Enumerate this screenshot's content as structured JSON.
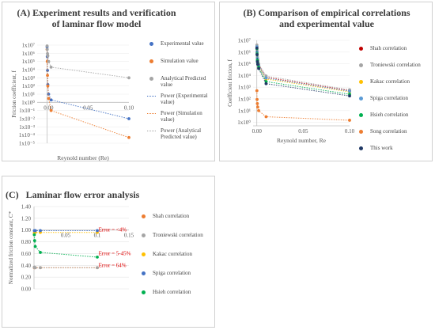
{
  "panels": {
    "a": {
      "label": "(A)",
      "title_line1": "Experiment results and verification",
      "title_line2": "of laminar flow model",
      "legend": [
        {
          "label": "Experimental value",
          "kind": "marker",
          "color": "#4472c4"
        },
        {
          "label": "Simulation value",
          "kind": "marker",
          "color": "#ed7d31"
        },
        {
          "label": "Analytical Predicted value",
          "kind": "marker",
          "color": "#a5a5a5"
        },
        {
          "label": "Power (Experimental value)",
          "kind": "line",
          "color": "#4472c4"
        },
        {
          "label": "Power (Simulation value)",
          "kind": "line",
          "color": "#ed7d31"
        },
        {
          "label": "Power (Analytical Predicted value)",
          "kind": "line",
          "color": "#a5a5a5"
        }
      ]
    },
    "b": {
      "label": "(B)",
      "title_line1": "Comparison of empirical correlations",
      "title_line2": "and experimental value",
      "legend": [
        {
          "label": "Shah correlation",
          "color": "#c00000"
        },
        {
          "label": "Troniewski correlation",
          "color": "#a5a5a5"
        },
        {
          "label": "Kakac correlation",
          "color": "#ffc000"
        },
        {
          "label": "Spiga correlation",
          "color": "#5b9bd5"
        },
        {
          "label": "Hsieh correlation",
          "color": "#00b050"
        },
        {
          "label": "Song correlation",
          "color": "#ed7d31"
        },
        {
          "label": "This work",
          "color": "#1f3864"
        }
      ]
    },
    "c": {
      "label": "(C)",
      "title": "Laminar flow error analysis",
      "legend": [
        {
          "label": "Shah correlation",
          "color": "#ed7d31"
        },
        {
          "label": "Troniewski correlation",
          "color": "#a5a5a5"
        },
        {
          "label": "Kakac correlation",
          "color": "#ffc000"
        },
        {
          "label": "Spiga correlation",
          "color": "#4472c4"
        },
        {
          "label": "Hsieh correlation",
          "color": "#00b050"
        }
      ]
    }
  },
  "chart_data": [
    {
      "type": "scatter",
      "id": "a",
      "xlabel": "Reynold number (Re)",
      "ylabel": "Friction coefficient, f",
      "xlim": [
        -0.012,
        0.1
      ],
      "ylim": [
        -5,
        7
      ],
      "yscale": "log",
      "x_ticks": [
        0.05,
        0.1
      ],
      "x_tick_labels": [
        "0.05",
        "0.10"
      ],
      "x_zero_label": "0.00",
      "y_tick_labels": [
        "1x10⁷",
        "1x10⁶",
        "1x10⁵",
        "1x10⁴",
        "1x10³",
        "1x10²",
        "1x10¹",
        "1x10⁰",
        "1x10⁻¹",
        "1x10⁻²",
        "1x10⁻³",
        "1x10⁻⁴",
        "1x10⁻⁵"
      ],
      "series": [
        {
          "name": "Experimental value",
          "color": "#4472c4",
          "x": [
            0.0001,
            0.0003,
            0.0006,
            0.001,
            0.002,
            0.005,
            0.1
          ],
          "y": [
            6000000,
            400000,
            8000,
            150,
            10,
            2,
            0.01
          ]
        },
        {
          "name": "Simulation value",
          "color": "#ed7d31",
          "x": [
            0.0001,
            0.0003,
            0.0006,
            0.001,
            0.002,
            0.005,
            0.1
          ],
          "y": [
            3000000,
            100000,
            2000,
            100,
            3,
            0.1,
            5e-05
          ]
        },
        {
          "name": "Analytical Predicted value",
          "color": "#a5a5a5",
          "x": [
            0.0001,
            0.0003,
            0.0006,
            0.001,
            0.002,
            0.005,
            0.1
          ],
          "y": [
            8000000,
            3000000,
            900000,
            500000,
            100000,
            20000,
            1000
          ]
        }
      ]
    },
    {
      "type": "scatter",
      "id": "b",
      "xlabel": "Reynold number, Re",
      "ylabel": "Coefficient friction, f",
      "xlim": [
        -0.004,
        0.1
      ],
      "ylim": [
        -0.3,
        7
      ],
      "yscale": "log",
      "x_ticks": [
        0,
        0.05,
        0.1
      ],
      "x_tick_labels": [
        "0.00",
        "0.05",
        "0.10"
      ],
      "y_tick_labels": [
        "1x10⁷",
        "1x10⁶",
        "1x10⁵",
        "1x10⁴",
        "1x10³",
        "1x10²",
        "1x10¹",
        "1x10⁰"
      ],
      "series": [
        {
          "name": "Shah correlation",
          "color": "#c00000",
          "x": [
            0.0001,
            0.0003,
            0.0006,
            0.001,
            0.002,
            0.01,
            0.1
          ],
          "y": [
            3000000,
            1000000,
            300000,
            200000,
            80000,
            7000,
            500
          ]
        },
        {
          "name": "Troniewski correlation",
          "color": "#a5a5a5",
          "x": [
            0.0001,
            0.0003,
            0.0006,
            0.001,
            0.002,
            0.01,
            0.1
          ],
          "y": [
            4000000,
            1500000,
            400000,
            250000,
            100000,
            9000,
            600
          ]
        },
        {
          "name": "Kakac correlation",
          "color": "#ffc000",
          "x": [
            0.0001,
            0.0003,
            0.0006,
            0.001,
            0.002,
            0.01,
            0.1
          ],
          "y": [
            2500000,
            900000,
            250000,
            150000,
            60000,
            5000,
            400
          ]
        },
        {
          "name": "Spiga correlation",
          "color": "#5b9bd5",
          "x": [
            0.0001,
            0.0003,
            0.0006,
            0.001,
            0.002,
            0.01,
            0.1
          ],
          "y": [
            2800000,
            1000000,
            280000,
            170000,
            70000,
            6000,
            450
          ]
        },
        {
          "name": "Hsieh correlation",
          "color": "#00b050",
          "x": [
            0.0001,
            0.0003,
            0.0006,
            0.001,
            0.002,
            0.01,
            0.1
          ],
          "y": [
            2000000,
            700000,
            200000,
            120000,
            50000,
            3000,
            250
          ]
        },
        {
          "name": "Song correlation",
          "color": "#ed7d31",
          "x": [
            0.0001,
            0.0003,
            0.0006,
            0.001,
            0.002,
            0.01,
            0.1
          ],
          "y": [
            500,
            90,
            40,
            20,
            10,
            3,
            1.5
          ]
        },
        {
          "name": "This work",
          "color": "#1f3864",
          "x": [
            0.0001,
            0.0003,
            0.0006,
            0.001,
            0.002,
            0.01,
            0.1
          ],
          "y": [
            2200000,
            600000,
            150000,
            90000,
            40000,
            2000,
            180
          ]
        }
      ]
    },
    {
      "type": "scatter",
      "id": "c",
      "xlabel": "",
      "ylabel": "Normalized friction constant, C*",
      "xlim": [
        0,
        0.15
      ],
      "ylim": [
        0,
        1.4
      ],
      "x_ticks": [
        0.05,
        0.1,
        0.15
      ],
      "x_tick_labels": [
        "0.05",
        "0.1",
        "0.15"
      ],
      "y_ticks": [
        0,
        0.2,
        0.4,
        0.6,
        0.8,
        1.0,
        1.2,
        1.4
      ],
      "y_tick_labels": [
        "0.00",
        "0.20",
        "0.40",
        "0.60",
        "0.80",
        "1.00",
        "1.20",
        "1.40"
      ],
      "annotations": [
        {
          "text": "Error = <4%",
          "x": 0.102,
          "y": 1.0
        },
        {
          "text": "Error = 5-45%",
          "x": 0.102,
          "y": 0.6
        },
        {
          "text": "Error = 64%",
          "x": 0.102,
          "y": 0.4
        }
      ],
      "series": [
        {
          "name": "Shah correlation",
          "color": "#ed7d31",
          "x": [
            0.0005,
            0.001,
            0.002,
            0.01,
            0.1
          ],
          "y": [
            0.36,
            0.36,
            0.36,
            0.36,
            0.36
          ]
        },
        {
          "name": "Troniewski correlation",
          "color": "#a5a5a5",
          "x": [
            0.0005,
            0.001,
            0.002,
            0.01,
            0.1
          ],
          "y": [
            0.37,
            0.36,
            0.36,
            0.36,
            0.36
          ]
        },
        {
          "name": "Kakac correlation",
          "color": "#ffc000",
          "x": [
            0.0005,
            0.001,
            0.002,
            0.01,
            0.1
          ],
          "y": [
            0.95,
            0.96,
            0.96,
            0.96,
            0.96
          ]
        },
        {
          "name": "Spiga correlation",
          "color": "#4472c4",
          "x": [
            0.0005,
            0.001,
            0.002,
            0.01,
            0.1
          ],
          "y": [
            0.99,
            0.99,
            0.99,
            0.99,
            0.99
          ]
        },
        {
          "name": "Hsieh correlation",
          "color": "#00b050",
          "x": [
            0.0005,
            0.001,
            0.002,
            0.01,
            0.1
          ],
          "y": [
            0.92,
            0.82,
            0.72,
            0.62,
            0.54
          ]
        }
      ]
    }
  ]
}
